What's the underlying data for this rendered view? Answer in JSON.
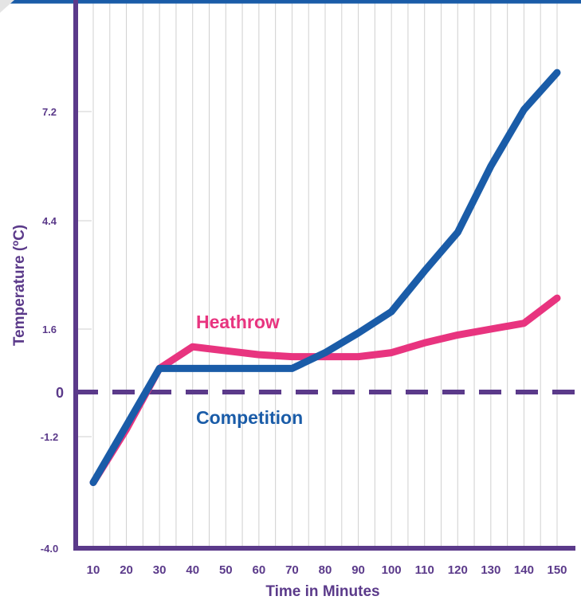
{
  "chart_data": {
    "type": "line",
    "xlabel": "Time in Minutes",
    "ylabel": "Temperature (ºC)",
    "x": [
      10,
      20,
      30,
      40,
      50,
      60,
      70,
      80,
      90,
      100,
      110,
      120,
      130,
      140,
      150
    ],
    "x_tick_labels": [
      "10",
      "20",
      "30",
      "40",
      "50",
      "60",
      "70",
      "80",
      "90",
      "100",
      "110",
      "120",
      "130",
      "140",
      "150"
    ],
    "y_ticks": [
      -4.0,
      -1.2,
      0,
      1.6,
      4.4,
      7.2
    ],
    "y_tick_labels": [
      "-4.0",
      "-1.2",
      "0",
      "1.6",
      "4.4",
      "7.2"
    ],
    "xlim": [
      10,
      150
    ],
    "ylim": [
      -4.0,
      10.0
    ],
    "grid": "vertical",
    "series": [
      {
        "name": "Heathrow",
        "color": "#e8347f",
        "values": [
          -2.35,
          -1.0,
          0.6,
          1.15,
          1.05,
          0.95,
          0.9,
          0.9,
          0.9,
          1.0,
          1.25,
          1.45,
          1.6,
          1.75,
          2.4
        ]
      },
      {
        "name": "Competition",
        "color": "#1a5ca8",
        "values": [
          -2.35,
          -0.9,
          0.6,
          0.6,
          0.6,
          0.6,
          0.6,
          1.0,
          1.5,
          2.05,
          3.1,
          4.1,
          5.8,
          7.25,
          8.2
        ]
      }
    ],
    "reference_line": {
      "y": 0,
      "style": "dashed",
      "color": "#5b3a8a"
    }
  }
}
